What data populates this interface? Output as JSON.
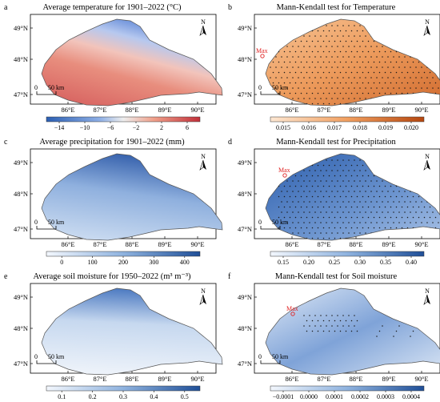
{
  "figure": {
    "panels": [
      {
        "letter": "a",
        "title": "Average temperature for 1901–2022 (°C)",
        "colormap": "diverging-blue-red",
        "legend_ticks": [
          "−14",
          "−10",
          "−6",
          "−2",
          "2",
          "6"
        ],
        "scalebar": "50 km",
        "north_label": "N",
        "lat_labels": [
          "49°N",
          "48°N",
          "47°N"
        ],
        "lon_labels": [
          "86°E",
          "87°E",
          "88°E",
          "89°E",
          "90°E"
        ],
        "stipple": "none",
        "max_label": ""
      },
      {
        "letter": "b",
        "title": "Mann-Kendall test for Temperature",
        "colormap": "orange",
        "legend_ticks": [
          "0.015",
          "0.016",
          "0.017",
          "0.018",
          "0.019",
          "0.020"
        ],
        "scalebar": "50 km",
        "north_label": "N",
        "lat_labels": [
          "49°N",
          "48°N",
          "47°N"
        ],
        "lon_labels": [
          "86°E",
          "87°E",
          "88°E",
          "89°E",
          "90°E"
        ],
        "stipple": "full",
        "max_label": "Max"
      },
      {
        "letter": "c",
        "title": "Average precipitation for 1901–2022 (mm)",
        "colormap": "blue",
        "legend_ticks": [
          "0",
          "100",
          "200",
          "300",
          "400"
        ],
        "scalebar": "50 km",
        "north_label": "N",
        "lat_labels": [
          "49°N",
          "48°N",
          "47°N"
        ],
        "lon_labels": [
          "86°E",
          "87°E",
          "88°E",
          "89°E",
          "90°E"
        ],
        "stipple": "none",
        "max_label": ""
      },
      {
        "letter": "d",
        "title": "Mann-Kendall test for Precipitation",
        "colormap": "blue",
        "legend_ticks": [
          "0.15",
          "0.20",
          "0.25",
          "0.30",
          "0.35",
          "0.40"
        ],
        "scalebar": "50 km",
        "north_label": "N",
        "lat_labels": [
          "49°N",
          "48°N",
          "47°N"
        ],
        "lon_labels": [
          "86°E",
          "87°E",
          "88°E",
          "89°E",
          "90°E"
        ],
        "stipple": "full",
        "max_label": "Max"
      },
      {
        "letter": "e",
        "title": "Average soil moisture for 1950–2022 (m³ m⁻³)",
        "colormap": "blue",
        "legend_ticks": [
          "0.1",
          "0.2",
          "0.3",
          "0.4",
          "0.5"
        ],
        "scalebar": "50 km",
        "north_label": "N",
        "lat_labels": [
          "49°N",
          "48°N",
          "47°N"
        ],
        "lon_labels": [
          "86°E",
          "87°E",
          "88°E",
          "89°E",
          "90°E"
        ],
        "stipple": "none",
        "max_label": ""
      },
      {
        "letter": "f",
        "title": "Mann-Kendall test for Soil moisture",
        "colormap": "blue",
        "legend_ticks": [
          "−0.0001",
          "0.0000",
          "0.0001",
          "0.0002",
          "0.0003",
          "0.0004"
        ],
        "scalebar": "50 km",
        "north_label": "N",
        "lat_labels": [
          "49°N",
          "48°N",
          "47°N"
        ],
        "lon_labels": [
          "86°E",
          "87°E",
          "88°E",
          "89°E",
          "90°E"
        ],
        "stipple": "partial",
        "max_label": "Max"
      }
    ]
  }
}
